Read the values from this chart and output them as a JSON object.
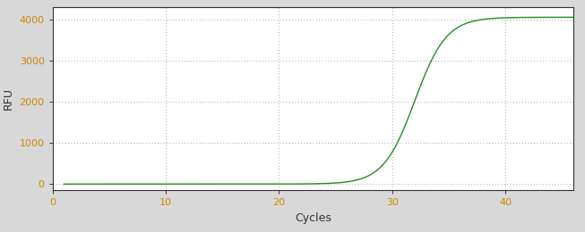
{
  "title": "",
  "xlabel": "Cycles",
  "ylabel": "RFU",
  "line_color": "#228B22",
  "background_color": "#d8d8d8",
  "plot_bg_color": "#ffffff",
  "grid_color": "#888888",
  "xlim": [
    0,
    46
  ],
  "ylim": [
    -150,
    4300
  ],
  "xticks": [
    0,
    10,
    20,
    30,
    40
  ],
  "yticks": [
    0,
    1000,
    2000,
    3000,
    4000
  ],
  "sigmoid_L": 4050,
  "sigmoid_k": 0.72,
  "sigmoid_x0": 32.0,
  "x_start": 1,
  "x_end": 46,
  "figsize": [
    6.53,
    2.6
  ],
  "dpi": 100
}
